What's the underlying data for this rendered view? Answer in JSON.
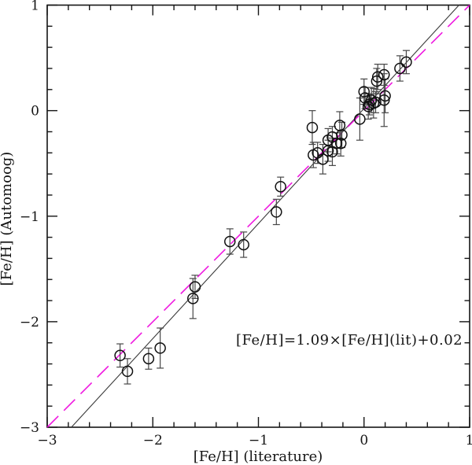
{
  "figure": {
    "background": "#ffffff",
    "frame_color": "#151515"
  },
  "chart_data": {
    "type": "scatter",
    "title": "",
    "xlabel": "[Fe/H] (literature)",
    "ylabel": "[Fe/H] (Automoog)",
    "xlim": [
      -3,
      1
    ],
    "ylim": [
      -3,
      1
    ],
    "x_major_ticks": [
      -3,
      -2,
      -1,
      0,
      1
    ],
    "x_tick_labels": [
      "−3",
      "−2",
      "−1",
      "0",
      "1"
    ],
    "y_major_ticks": [
      1,
      0,
      -1,
      -2,
      -3
    ],
    "y_tick_labels": [
      "1",
      "0",
      "−1",
      "−2",
      "−3"
    ],
    "minor_tick_step": 0.2,
    "grid": false,
    "legend": "none",
    "annotation": {
      "text": "[Fe/H]=1.09×[Fe/H](lit)+0.02",
      "x": -1.21,
      "y": -2.17,
      "anchor": "start"
    },
    "fit_line": {
      "slope": 1.09,
      "intercept": 0.02,
      "color": "#3a3a3a",
      "style": "solid"
    },
    "identity_line": {
      "slope": 1.0,
      "intercept": 0.0,
      "color": "#ee00dd",
      "style": "long-dash"
    },
    "marker": {
      "shape": "open-circle",
      "stroke_color": "#101010",
      "error_bar_color": "#474747"
    },
    "points": [
      {
        "x": -2.31,
        "y": -2.32,
        "err": 0.11
      },
      {
        "x": -2.24,
        "y": -2.47,
        "err": 0.12
      },
      {
        "x": -2.04,
        "y": -2.35,
        "err": 0.1
      },
      {
        "x": -1.93,
        "y": -2.25,
        "err": 0.19
      },
      {
        "x": -1.62,
        "y": -1.78,
        "err": 0.19
      },
      {
        "x": -1.6,
        "y": -1.67,
        "err": 0.11
      },
      {
        "x": -1.27,
        "y": -1.24,
        "err": 0.12
      },
      {
        "x": -1.14,
        "y": -1.27,
        "err": 0.12
      },
      {
        "x": -0.83,
        "y": -0.96,
        "err": 0.12
      },
      {
        "x": -0.79,
        "y": -0.72,
        "err": 0.09
      },
      {
        "x": -0.49,
        "y": -0.16,
        "err": 0.16
      },
      {
        "x": -0.23,
        "y": -0.14,
        "err": 0.13
      },
      {
        "x": -0.21,
        "y": -0.23,
        "err": 0.12
      },
      {
        "x": -0.3,
        "y": -0.25,
        "err": 0.1
      },
      {
        "x": -0.34,
        "y": -0.28,
        "err": 0.11
      },
      {
        "x": -0.26,
        "y": -0.31,
        "err": 0.1
      },
      {
        "x": -0.22,
        "y": -0.31,
        "err": 0.12
      },
      {
        "x": -0.34,
        "y": -0.38,
        "err": 0.1
      },
      {
        "x": -0.3,
        "y": -0.39,
        "err": 0.13
      },
      {
        "x": -0.44,
        "y": -0.4,
        "err": 0.1
      },
      {
        "x": -0.48,
        "y": -0.42,
        "err": 0.12
      },
      {
        "x": -0.39,
        "y": -0.46,
        "err": 0.14
      },
      {
        "x": -0.04,
        "y": -0.08,
        "err": 0.2
      },
      {
        "x": 0.0,
        "y": 0.18,
        "err": 0.12
      },
      {
        "x": 0.01,
        "y": 0.12,
        "err": 0.1
      },
      {
        "x": 0.07,
        "y": 0.1,
        "err": 0.12
      },
      {
        "x": 0.09,
        "y": 0.07,
        "err": 0.14
      },
      {
        "x": 0.05,
        "y": 0.06,
        "err": 0.1
      },
      {
        "x": 0.04,
        "y": 0.04,
        "err": 0.12
      },
      {
        "x": 0.11,
        "y": 0.08,
        "err": 0.1
      },
      {
        "x": 0.12,
        "y": 0.28,
        "err": 0.12
      },
      {
        "x": 0.13,
        "y": 0.32,
        "err": 0.12
      },
      {
        "x": 0.19,
        "y": 0.34,
        "err": 0.1
      },
      {
        "x": 0.2,
        "y": 0.14,
        "err": 0.16
      },
      {
        "x": 0.19,
        "y": 0.1,
        "err": 0.25
      },
      {
        "x": 0.34,
        "y": 0.4,
        "err": 0.12
      },
      {
        "x": 0.4,
        "y": 0.46,
        "err": 0.11
      }
    ]
  }
}
